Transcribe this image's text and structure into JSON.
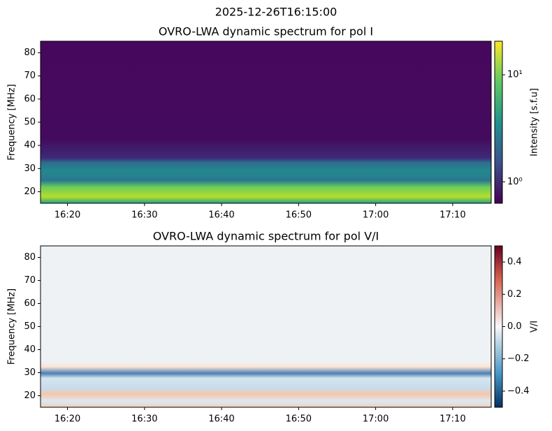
{
  "figure_title": "2025-12-26T16:15:00",
  "chart_data": [
    {
      "type": "heatmap",
      "title": "OVRO-LWA dynamic spectrum for pol I",
      "ylabel": "Frequency [MHz]",
      "xlim": [
        "2025-12-26T16:16:30",
        "2025-12-26T17:15:00"
      ],
      "xticks": [
        {
          "value": "2025-12-26T16:20",
          "label": "16:20"
        },
        {
          "value": "2025-12-26T16:30",
          "label": "16:30"
        },
        {
          "value": "2025-12-26T16:40",
          "label": "16:40"
        },
        {
          "value": "2025-12-26T16:50",
          "label": "16:50"
        },
        {
          "value": "2025-12-26T17:00",
          "label": "17:00"
        },
        {
          "value": "2025-12-26T17:10",
          "label": "17:10"
        }
      ],
      "ylim": [
        15,
        85
      ],
      "yticks": [
        20,
        30,
        40,
        50,
        60,
        70,
        80
      ],
      "colorbar": {
        "label": "Intensity [s.f.u]",
        "scale": "log",
        "colormap": "viridis",
        "lim": [
          0.63,
          20.6
        ],
        "ticks": [
          {
            "value": 1,
            "label": "10⁰"
          },
          {
            "value": 10,
            "label": "10¹"
          }
        ]
      }
    },
    {
      "type": "heatmap",
      "title": "OVRO-LWA dynamic spectrum for pol V/I",
      "ylabel": "Frequency [MHz]",
      "xlim": [
        "2025-12-26T16:16:30",
        "2025-12-26T17:15:00"
      ],
      "xticks": [
        {
          "value": "2025-12-26T16:20",
          "label": "16:20"
        },
        {
          "value": "2025-12-26T16:30",
          "label": "16:30"
        },
        {
          "value": "2025-12-26T16:40",
          "label": "16:40"
        },
        {
          "value": "2025-12-26T16:50",
          "label": "16:50"
        },
        {
          "value": "2025-12-26T17:00",
          "label": "17:00"
        },
        {
          "value": "2025-12-26T17:10",
          "label": "17:10"
        }
      ],
      "ylim": [
        15,
        85
      ],
      "yticks": [
        20,
        30,
        40,
        50,
        60,
        70,
        80
      ],
      "colorbar": {
        "label": "V/I",
        "scale": "linear",
        "colormap": "RdBu_r",
        "lim": [
          -0.5,
          0.5
        ],
        "ticks": [
          {
            "value": -0.4,
            "label": "−0.4"
          },
          {
            "value": -0.2,
            "label": "−0.2"
          },
          {
            "value": 0,
            "label": "0.0"
          },
          0.2,
          0.4
        ]
      }
    }
  ]
}
